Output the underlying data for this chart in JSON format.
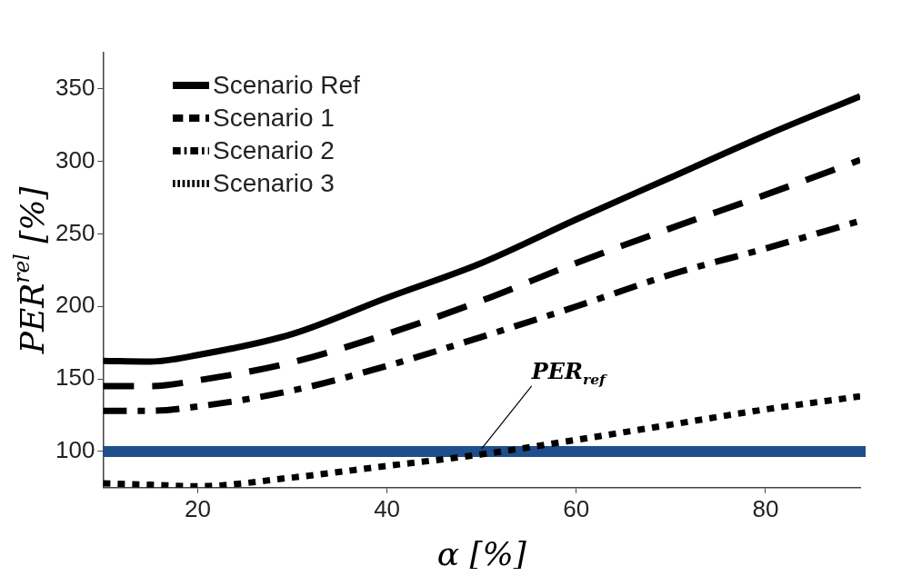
{
  "chart_data": {
    "type": "line",
    "xlabel": "α [%]",
    "ylabel": "PER$^{rel}$ [%]",
    "x": [
      10,
      15,
      20,
      30,
      40,
      50,
      60,
      70,
      80,
      90
    ],
    "series": [
      {
        "name": "Scenario Ref",
        "color": "#000000",
        "line_style": "solid",
        "values": [
          162.5,
          162,
          166.5,
          181,
          206,
          230,
          260,
          289,
          318,
          345
        ]
      },
      {
        "name": "Scenario 1",
        "color": "#000000",
        "line_style": "dashed",
        "values": [
          145,
          145,
          149,
          161.5,
          181,
          204,
          230,
          254,
          277,
          301
        ]
      },
      {
        "name": "Scenario 2",
        "color": "#000000",
        "line_style": "dashdot",
        "values": [
          128,
          128,
          131,
          142,
          159,
          179,
          200,
          222,
          240,
          259
        ]
      },
      {
        "name": "Scenario 3",
        "color": "#000000",
        "line_style": "dotted",
        "values": [
          78,
          77,
          76,
          82,
          90,
          98,
          108,
          118.5,
          129,
          138
        ]
      }
    ],
    "xlim": [
      10,
      90
    ],
    "ylim": [
      75,
      375
    ],
    "xticks": [
      20,
      40,
      60,
      80
    ],
    "yticks": [
      100,
      150,
      200,
      250,
      300,
      350
    ],
    "ref_lines": [
      {
        "axis": "y",
        "value": 100,
        "label": "PER$_{ref}$",
        "color": "#1f4e8c"
      }
    ],
    "grid": false,
    "legend": "top left",
    "marker": "none"
  }
}
